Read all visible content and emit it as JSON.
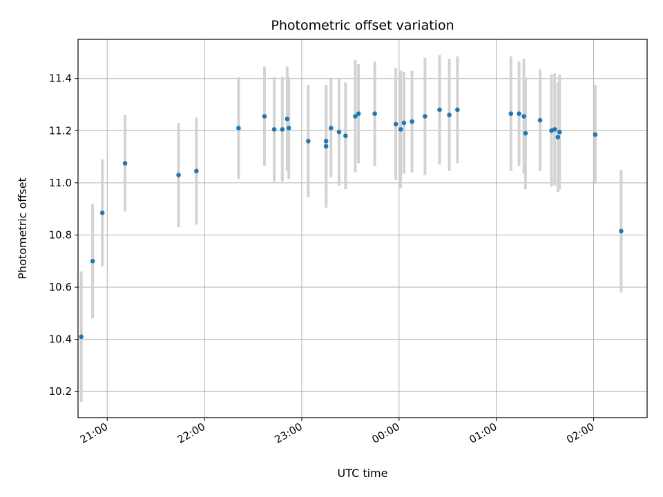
{
  "chart_data": {
    "type": "scatter",
    "title": "Photometric offset variation",
    "xlabel": "UTC time",
    "ylabel": "Photometric offset",
    "x_axis": {
      "kind": "time",
      "range": [
        "20:42",
        "02:33"
      ],
      "ticks": [
        "21:00",
        "22:00",
        "23:00",
        "00:00",
        "01:00",
        "02:00"
      ]
    },
    "y_axis": {
      "range": [
        10.1,
        11.55
      ],
      "ticks": [
        "10.2",
        "10.4",
        "10.6",
        "10.8",
        "11.0",
        "11.2",
        "11.4"
      ]
    },
    "grid": true,
    "colors": {
      "marker": "#1f77b4",
      "errorbar": "#d3d3d3",
      "grid": "#b0b0b0"
    },
    "series": [
      {
        "points": [
          {
            "t": "20:44",
            "y": 10.41,
            "err": 0.25
          },
          {
            "t": "20:51",
            "y": 10.7,
            "err": 0.22
          },
          {
            "t": "20:57",
            "y": 10.885,
            "err": 0.205
          },
          {
            "t": "21:11",
            "y": 11.075,
            "err": 0.185
          },
          {
            "t": "21:44",
            "y": 11.03,
            "err": 0.2
          },
          {
            "t": "21:55",
            "y": 11.045,
            "err": 0.205
          },
          {
            "t": "22:21",
            "y": 11.21,
            "err": 0.195
          },
          {
            "t": "22:37",
            "y": 11.255,
            "err": 0.19
          },
          {
            "t": "22:43",
            "y": 11.205,
            "err": 0.2
          },
          {
            "t": "22:48",
            "y": 11.205,
            "err": 0.2
          },
          {
            "t": "22:51",
            "y": 11.245,
            "err": 0.2
          },
          {
            "t": "22:52",
            "y": 11.21,
            "err": 0.195
          },
          {
            "t": "23:04",
            "y": 11.16,
            "err": 0.215
          },
          {
            "t": "23:15",
            "y": 11.14,
            "err": 0.235
          },
          {
            "t": "23:15",
            "y": 11.16,
            "err": 0.215
          },
          {
            "t": "23:18",
            "y": 11.21,
            "err": 0.19
          },
          {
            "t": "23:23",
            "y": 11.195,
            "err": 0.205
          },
          {
            "t": "23:27",
            "y": 11.18,
            "err": 0.205
          },
          {
            "t": "23:33",
            "y": 11.255,
            "err": 0.215
          },
          {
            "t": "23:35",
            "y": 11.265,
            "err": 0.19
          },
          {
            "t": "23:45",
            "y": 11.265,
            "err": 0.2
          },
          {
            "t": "23:58",
            "y": 11.225,
            "err": 0.215
          },
          {
            "t": "00:01",
            "y": 11.205,
            "err": 0.225
          },
          {
            "t": "00:03",
            "y": 11.23,
            "err": 0.195
          },
          {
            "t": "00:08",
            "y": 11.235,
            "err": 0.195
          },
          {
            "t": "00:16",
            "y": 11.255,
            "err": 0.225
          },
          {
            "t": "00:25",
            "y": 11.28,
            "err": 0.21
          },
          {
            "t": "00:31",
            "y": 11.26,
            "err": 0.215
          },
          {
            "t": "00:36",
            "y": 11.28,
            "err": 0.205
          },
          {
            "t": "01:09",
            "y": 11.265,
            "err": 0.22
          },
          {
            "t": "01:14",
            "y": 11.265,
            "err": 0.2
          },
          {
            "t": "01:17",
            "y": 11.255,
            "err": 0.22
          },
          {
            "t": "01:18",
            "y": 11.19,
            "err": 0.215
          },
          {
            "t": "01:27",
            "y": 11.24,
            "err": 0.195
          },
          {
            "t": "01:34",
            "y": 11.2,
            "err": 0.215
          },
          {
            "t": "01:36",
            "y": 11.205,
            "err": 0.215
          },
          {
            "t": "01:38",
            "y": 11.175,
            "err": 0.21
          },
          {
            "t": "01:39",
            "y": 11.195,
            "err": 0.22
          },
          {
            "t": "02:01",
            "y": 11.185,
            "err": 0.19
          },
          {
            "t": "02:17",
            "y": 10.815,
            "err": 0.235
          }
        ]
      }
    ]
  }
}
